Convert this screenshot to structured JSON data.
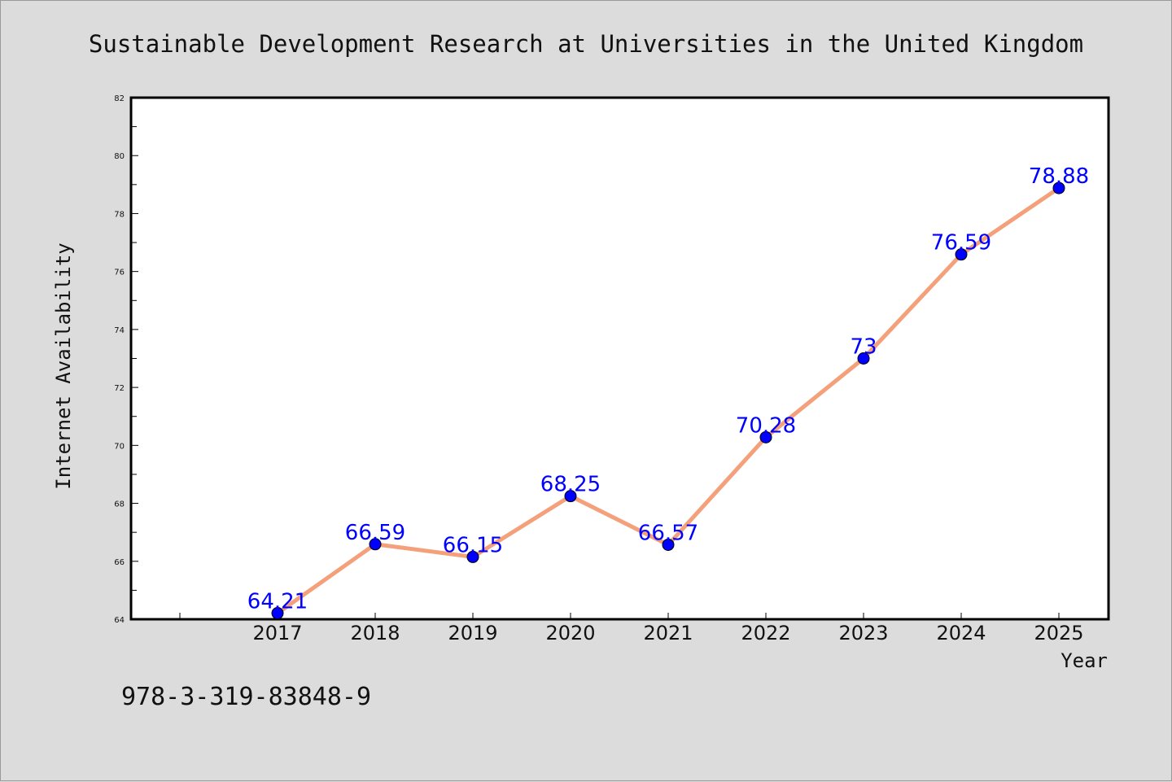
{
  "chart_data": {
    "type": "line",
    "title": "Sustainable Development Research at Universities in the United Kingdom",
    "xlabel": "Year",
    "ylabel": "Internet Availability",
    "x": [
      "2017",
      "2018",
      "2019",
      "2020",
      "2021",
      "2022",
      "2023",
      "2024",
      "2025"
    ],
    "series": [
      {
        "values": [
          64.21,
          66.59,
          66.15,
          68.25,
          66.57,
          70.28,
          73,
          76.59,
          78.88
        ],
        "labels": [
          "64.21",
          "66.59",
          "66.15",
          "68.25",
          "66.57",
          "70.28",
          "73",
          "76.59",
          "78.88"
        ]
      }
    ],
    "ylim": [
      64,
      82
    ],
    "yticks": [
      "64",
      "66",
      "68",
      "70",
      "72",
      "74",
      "76",
      "78",
      "80",
      "82"
    ],
    "grid": false,
    "legend": "none",
    "line_color": "#f4a07a",
    "marker_color": "#0000ff",
    "label_color": "#0000ff"
  },
  "footer_text": "978-3-319-83848-9"
}
